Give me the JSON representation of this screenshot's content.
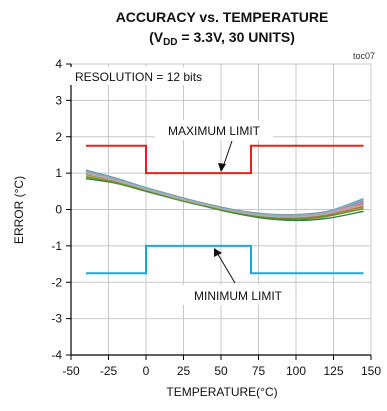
{
  "chart_data": {
    "type": "line",
    "title": "ACCURACY vs. TEMPERATURE",
    "subtitle": {
      "prefix": "(V",
      "subscript": "DD",
      "suffix": " = 3.3V, 30 UNITS)"
    },
    "figure_id": "toc07",
    "xlabel": "TEMPERATURE(°C)",
    "ylabel": "ERROR (°C)",
    "xlim": [
      -50,
      150
    ],
    "ylim": [
      -4,
      4
    ],
    "xticks": [
      -50,
      -25,
      0,
      25,
      50,
      75,
      100,
      125,
      150
    ],
    "yticks": [
      -4,
      -3,
      -2,
      -1,
      0,
      1,
      2,
      3,
      4
    ],
    "grid": true,
    "annotation_resolution": "RESOLUTION  = 12 bits",
    "annotation_max": "MAXIMUM LIMIT",
    "annotation_min": "MINIMUM LIMIT",
    "limits": [
      {
        "name": "MAXIMUM LIMIT",
        "color": "#e8201a",
        "x": [
          -40,
          0,
          0,
          70,
          70,
          145
        ],
        "y": [
          1.75,
          1.75,
          1.0,
          1.0,
          1.75,
          1.75
        ]
      },
      {
        "name": "MINIMUM LIMIT",
        "color": "#1aa7dc",
        "x": [
          -40,
          0,
          0,
          70,
          70,
          145
        ],
        "y": [
          -1.75,
          -1.75,
          -1.0,
          -1.0,
          -1.75,
          -1.75
        ]
      }
    ],
    "units_x": [
      -40,
      -20,
      0,
      20,
      40,
      60,
      80,
      100,
      120,
      145
    ],
    "units": [
      {
        "color": "#7f7f7f",
        "y": [
          1.08,
          0.86,
          0.6,
          0.37,
          0.16,
          -0.02,
          -0.12,
          -0.14,
          -0.06,
          0.25
        ]
      },
      {
        "color": "#4f81bd",
        "y": [
          1.02,
          0.82,
          0.57,
          0.34,
          0.13,
          -0.05,
          -0.16,
          -0.18,
          -0.1,
          0.22
        ]
      },
      {
        "color": "#9bbb59",
        "y": [
          0.95,
          0.76,
          0.53,
          0.3,
          0.1,
          -0.08,
          -0.2,
          -0.24,
          -0.16,
          0.1
        ]
      },
      {
        "color": "#c0504d",
        "y": [
          1.05,
          0.84,
          0.58,
          0.35,
          0.14,
          -0.04,
          -0.15,
          -0.17,
          -0.09,
          0.18
        ]
      },
      {
        "color": "#8064a2",
        "y": [
          1.0,
          0.8,
          0.55,
          0.32,
          0.12,
          -0.07,
          -0.19,
          -0.22,
          -0.14,
          0.15
        ]
      },
      {
        "color": "#f79646",
        "y": [
          0.98,
          0.78,
          0.54,
          0.31,
          0.11,
          -0.06,
          -0.18,
          -0.21,
          -0.13,
          0.12
        ]
      },
      {
        "color": "#4bacc6",
        "y": [
          1.06,
          0.85,
          0.6,
          0.36,
          0.15,
          -0.03,
          -0.13,
          -0.15,
          -0.07,
          0.3
        ]
      },
      {
        "color": "#c8b560",
        "y": [
          0.92,
          0.74,
          0.51,
          0.29,
          0.09,
          -0.1,
          -0.23,
          -0.27,
          -0.2,
          0.05
        ]
      },
      {
        "color": "#2c7a3f",
        "y": [
          0.85,
          0.72,
          0.5,
          0.28,
          0.08,
          -0.11,
          -0.25,
          -0.3,
          -0.25,
          -0.05
        ]
      },
      {
        "color": "#a67c52",
        "y": [
          0.97,
          0.77,
          0.53,
          0.31,
          0.1,
          -0.08,
          -0.2,
          -0.23,
          -0.15,
          0.08
        ]
      },
      {
        "color": "#d98cb3",
        "y": [
          1.01,
          0.81,
          0.56,
          0.33,
          0.13,
          -0.05,
          -0.17,
          -0.19,
          -0.11,
          0.2
        ]
      },
      {
        "color": "#9aa7b8",
        "y": [
          1.04,
          0.83,
          0.58,
          0.35,
          0.14,
          -0.04,
          -0.14,
          -0.16,
          -0.08,
          0.26
        ]
      },
      {
        "color": "#6b8e23",
        "y": [
          0.9,
          0.73,
          0.52,
          0.29,
          0.09,
          -0.09,
          -0.22,
          -0.26,
          -0.19,
          0.02
        ]
      },
      {
        "color": "#b0b0b0",
        "y": [
          0.99,
          0.79,
          0.55,
          0.32,
          0.12,
          -0.06,
          -0.18,
          -0.2,
          -0.12,
          0.14
        ]
      }
    ]
  }
}
